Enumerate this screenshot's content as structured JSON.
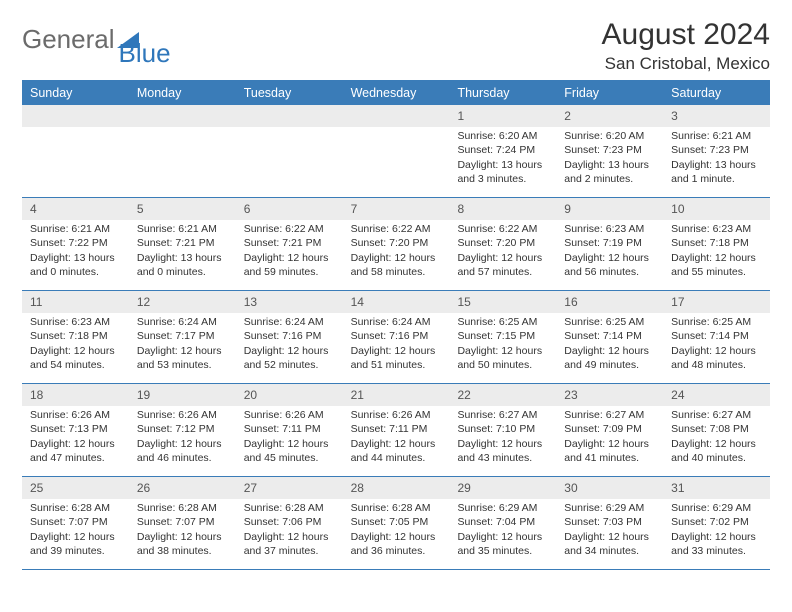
{
  "brand": {
    "part1": "General",
    "part2": "Blue"
  },
  "title": "August 2024",
  "location": "San Cristobal, Mexico",
  "colors": {
    "header_bg": "#3a7cb8",
    "header_text": "#ffffff",
    "cell_num_bg": "#ececec",
    "text": "#333333",
    "brand_blue": "#2f77bb",
    "brand_grey": "#6b6b6b"
  },
  "day_names": [
    "Sunday",
    "Monday",
    "Tuesday",
    "Wednesday",
    "Thursday",
    "Friday",
    "Saturday"
  ],
  "weeks": [
    [
      {
        "n": "",
        "sunrise": "",
        "sunset": "",
        "daylight": ""
      },
      {
        "n": "",
        "sunrise": "",
        "sunset": "",
        "daylight": ""
      },
      {
        "n": "",
        "sunrise": "",
        "sunset": "",
        "daylight": ""
      },
      {
        "n": "",
        "sunrise": "",
        "sunset": "",
        "daylight": ""
      },
      {
        "n": "1",
        "sunrise": "Sunrise: 6:20 AM",
        "sunset": "Sunset: 7:24 PM",
        "daylight": "Daylight: 13 hours and 3 minutes."
      },
      {
        "n": "2",
        "sunrise": "Sunrise: 6:20 AM",
        "sunset": "Sunset: 7:23 PM",
        "daylight": "Daylight: 13 hours and 2 minutes."
      },
      {
        "n": "3",
        "sunrise": "Sunrise: 6:21 AM",
        "sunset": "Sunset: 7:23 PM",
        "daylight": "Daylight: 13 hours and 1 minute."
      }
    ],
    [
      {
        "n": "4",
        "sunrise": "Sunrise: 6:21 AM",
        "sunset": "Sunset: 7:22 PM",
        "daylight": "Daylight: 13 hours and 0 minutes."
      },
      {
        "n": "5",
        "sunrise": "Sunrise: 6:21 AM",
        "sunset": "Sunset: 7:21 PM",
        "daylight": "Daylight: 13 hours and 0 minutes."
      },
      {
        "n": "6",
        "sunrise": "Sunrise: 6:22 AM",
        "sunset": "Sunset: 7:21 PM",
        "daylight": "Daylight: 12 hours and 59 minutes."
      },
      {
        "n": "7",
        "sunrise": "Sunrise: 6:22 AM",
        "sunset": "Sunset: 7:20 PM",
        "daylight": "Daylight: 12 hours and 58 minutes."
      },
      {
        "n": "8",
        "sunrise": "Sunrise: 6:22 AM",
        "sunset": "Sunset: 7:20 PM",
        "daylight": "Daylight: 12 hours and 57 minutes."
      },
      {
        "n": "9",
        "sunrise": "Sunrise: 6:23 AM",
        "sunset": "Sunset: 7:19 PM",
        "daylight": "Daylight: 12 hours and 56 minutes."
      },
      {
        "n": "10",
        "sunrise": "Sunrise: 6:23 AM",
        "sunset": "Sunset: 7:18 PM",
        "daylight": "Daylight: 12 hours and 55 minutes."
      }
    ],
    [
      {
        "n": "11",
        "sunrise": "Sunrise: 6:23 AM",
        "sunset": "Sunset: 7:18 PM",
        "daylight": "Daylight: 12 hours and 54 minutes."
      },
      {
        "n": "12",
        "sunrise": "Sunrise: 6:24 AM",
        "sunset": "Sunset: 7:17 PM",
        "daylight": "Daylight: 12 hours and 53 minutes."
      },
      {
        "n": "13",
        "sunrise": "Sunrise: 6:24 AM",
        "sunset": "Sunset: 7:16 PM",
        "daylight": "Daylight: 12 hours and 52 minutes."
      },
      {
        "n": "14",
        "sunrise": "Sunrise: 6:24 AM",
        "sunset": "Sunset: 7:16 PM",
        "daylight": "Daylight: 12 hours and 51 minutes."
      },
      {
        "n": "15",
        "sunrise": "Sunrise: 6:25 AM",
        "sunset": "Sunset: 7:15 PM",
        "daylight": "Daylight: 12 hours and 50 minutes."
      },
      {
        "n": "16",
        "sunrise": "Sunrise: 6:25 AM",
        "sunset": "Sunset: 7:14 PM",
        "daylight": "Daylight: 12 hours and 49 minutes."
      },
      {
        "n": "17",
        "sunrise": "Sunrise: 6:25 AM",
        "sunset": "Sunset: 7:14 PM",
        "daylight": "Daylight: 12 hours and 48 minutes."
      }
    ],
    [
      {
        "n": "18",
        "sunrise": "Sunrise: 6:26 AM",
        "sunset": "Sunset: 7:13 PM",
        "daylight": "Daylight: 12 hours and 47 minutes."
      },
      {
        "n": "19",
        "sunrise": "Sunrise: 6:26 AM",
        "sunset": "Sunset: 7:12 PM",
        "daylight": "Daylight: 12 hours and 46 minutes."
      },
      {
        "n": "20",
        "sunrise": "Sunrise: 6:26 AM",
        "sunset": "Sunset: 7:11 PM",
        "daylight": "Daylight: 12 hours and 45 minutes."
      },
      {
        "n": "21",
        "sunrise": "Sunrise: 6:26 AM",
        "sunset": "Sunset: 7:11 PM",
        "daylight": "Daylight: 12 hours and 44 minutes."
      },
      {
        "n": "22",
        "sunrise": "Sunrise: 6:27 AM",
        "sunset": "Sunset: 7:10 PM",
        "daylight": "Daylight: 12 hours and 43 minutes."
      },
      {
        "n": "23",
        "sunrise": "Sunrise: 6:27 AM",
        "sunset": "Sunset: 7:09 PM",
        "daylight": "Daylight: 12 hours and 41 minutes."
      },
      {
        "n": "24",
        "sunrise": "Sunrise: 6:27 AM",
        "sunset": "Sunset: 7:08 PM",
        "daylight": "Daylight: 12 hours and 40 minutes."
      }
    ],
    [
      {
        "n": "25",
        "sunrise": "Sunrise: 6:28 AM",
        "sunset": "Sunset: 7:07 PM",
        "daylight": "Daylight: 12 hours and 39 minutes."
      },
      {
        "n": "26",
        "sunrise": "Sunrise: 6:28 AM",
        "sunset": "Sunset: 7:07 PM",
        "daylight": "Daylight: 12 hours and 38 minutes."
      },
      {
        "n": "27",
        "sunrise": "Sunrise: 6:28 AM",
        "sunset": "Sunset: 7:06 PM",
        "daylight": "Daylight: 12 hours and 37 minutes."
      },
      {
        "n": "28",
        "sunrise": "Sunrise: 6:28 AM",
        "sunset": "Sunset: 7:05 PM",
        "daylight": "Daylight: 12 hours and 36 minutes."
      },
      {
        "n": "29",
        "sunrise": "Sunrise: 6:29 AM",
        "sunset": "Sunset: 7:04 PM",
        "daylight": "Daylight: 12 hours and 35 minutes."
      },
      {
        "n": "30",
        "sunrise": "Sunrise: 6:29 AM",
        "sunset": "Sunset: 7:03 PM",
        "daylight": "Daylight: 12 hours and 34 minutes."
      },
      {
        "n": "31",
        "sunrise": "Sunrise: 6:29 AM",
        "sunset": "Sunset: 7:02 PM",
        "daylight": "Daylight: 12 hours and 33 minutes."
      }
    ]
  ]
}
